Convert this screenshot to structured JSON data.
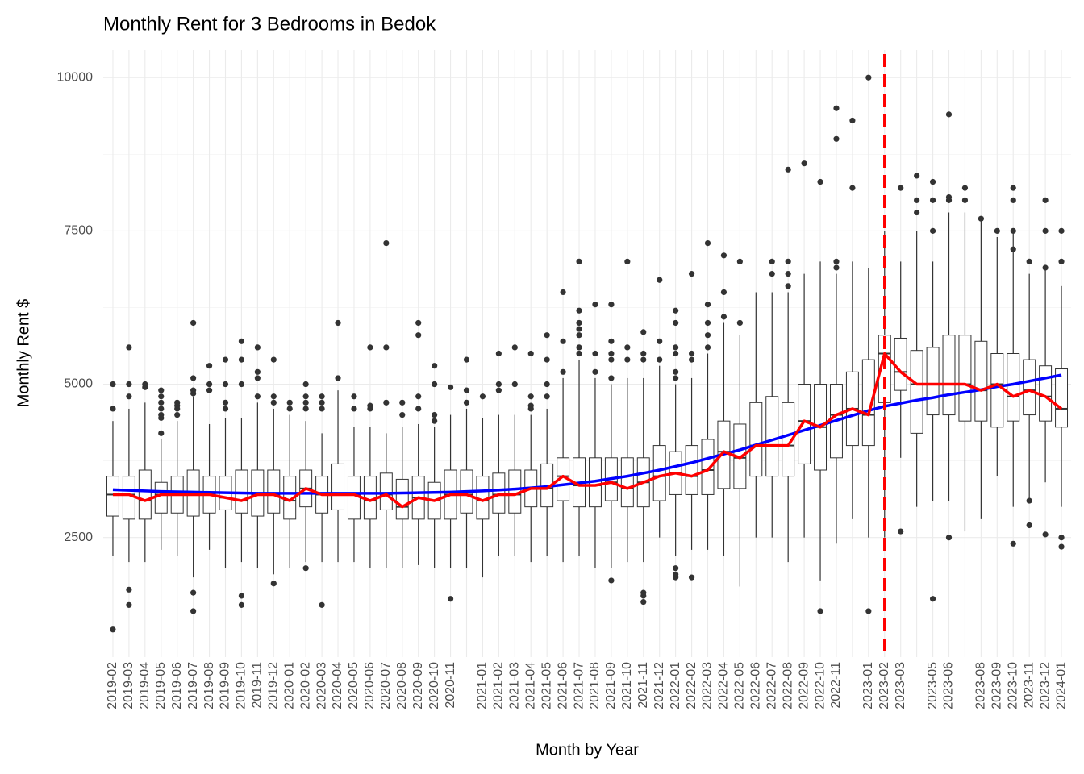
{
  "chart_data": {
    "type": "boxplot",
    "title": "Monthly Rent for 3 Bedrooms in Bedok",
    "x_label": "Month by Year",
    "y_label": "Monthly Rent $",
    "categories": [
      "2019-02",
      "2019-03",
      "2019-04",
      "2019-05",
      "2019-06",
      "2019-07",
      "2019-08",
      "2019-09",
      "2019-10",
      "2019-11",
      "2019-12",
      "2020-01",
      "2020-02",
      "2020-03",
      "2020-04",
      "2020-05",
      "2020-06",
      "2020-07",
      "2020-08",
      "2020-09",
      "2020-10",
      "2020-11",
      null,
      "2021-01",
      "2021-02",
      "2021-03",
      "2021-04",
      "2021-05",
      "2021-06",
      "2021-07",
      "2021-08",
      "2021-09",
      "2021-10",
      "2021-11",
      "2021-12",
      "2022-01",
      "2022-02",
      "2022-03",
      "2022-04",
      "2022-05",
      "2022-06",
      "2022-07",
      "2022-08",
      "2022-09",
      "2022-10",
      "2022-11",
      null,
      "2023-01",
      "2023-02",
      "2023-03",
      null,
      "2023-05",
      "2023-06",
      null,
      "2023-08",
      "2023-09",
      "2023-10",
      "2023-11",
      "2023-12",
      "2024-01"
    ],
    "whisker_low": [
      2200,
      2100,
      2100,
      2300,
      2200,
      1850,
      2300,
      2000,
      2100,
      2000,
      1900,
      2000,
      2100,
      2100,
      2100,
      2100,
      2000,
      2000,
      2000,
      2050,
      2000,
      2000,
      2000,
      1850,
      2200,
      2200,
      2100,
      2200,
      2100,
      2200,
      2000,
      2000,
      2100,
      2100,
      2500,
      2200,
      2300,
      2300,
      2200,
      1700,
      2500,
      2500,
      2100,
      2500,
      1800,
      2400,
      2800,
      2500,
      2500,
      3800,
      3000,
      3100,
      3100,
      2600,
      2800,
      3500,
      3000,
      3100,
      3400,
      3000
    ],
    "q1": [
      2850,
      2800,
      2800,
      2900,
      2900,
      2850,
      2900,
      2950,
      2900,
      2850,
      2900,
      2800,
      3000,
      2900,
      2950,
      2800,
      2800,
      2950,
      2800,
      2800,
      2800,
      2800,
      2900,
      2800,
      2900,
      2900,
      3000,
      3000,
      3100,
      3000,
      3000,
      3100,
      3000,
      3000,
      3100,
      3200,
      3200,
      3200,
      3300,
      3300,
      3500,
      3500,
      3500,
      3700,
      3600,
      3800,
      4000,
      4000,
      4700,
      4900,
      4200,
      4500,
      4500,
      4400,
      4400,
      4300,
      4400,
      4500,
      4400,
      4300
    ],
    "median": [
      3200,
      3200,
      3100,
      3200,
      3200,
      3200,
      3200,
      3150,
      3100,
      3200,
      3200,
      3100,
      3300,
      3200,
      3200,
      3200,
      3100,
      3200,
      3000,
      3150,
      3100,
      3200,
      3200,
      3100,
      3200,
      3200,
      3300,
      3300,
      3500,
      3350,
      3350,
      3400,
      3300,
      3400,
      3500,
      3550,
      3500,
      3600,
      3900,
      3800,
      4000,
      4000,
      4000,
      4400,
      4300,
      4500,
      4600,
      4500,
      5500,
      5200,
      5000,
      5000,
      5000,
      5000,
      4900,
      5000,
      4800,
      4900,
      4800,
      4600
    ],
    "q3": [
      3500,
      3500,
      3600,
      3400,
      3500,
      3600,
      3500,
      3500,
      3600,
      3600,
      3600,
      3500,
      3600,
      3500,
      3700,
      3500,
      3500,
      3550,
      3450,
      3500,
      3400,
      3600,
      3600,
      3500,
      3550,
      3600,
      3600,
      3700,
      3800,
      3800,
      3800,
      3800,
      3800,
      3800,
      4000,
      3900,
      4000,
      4100,
      4400,
      4350,
      4700,
      4800,
      4700,
      5000,
      5000,
      5000,
      5200,
      5400,
      5800,
      5750,
      5550,
      5600,
      5800,
      5800,
      5700,
      5500,
      5500,
      5400,
      5300,
      5250
    ],
    "whisker_high": [
      4400,
      4600,
      4700,
      4100,
      4400,
      4800,
      4350,
      4450,
      4450,
      4700,
      4600,
      4500,
      4400,
      4200,
      4900,
      4300,
      4300,
      4200,
      4300,
      4350,
      4300,
      4500,
      4600,
      4450,
      4500,
      4500,
      4500,
      4600,
      5100,
      5400,
      5100,
      5000,
      5100,
      5100,
      5300,
      5000,
      5100,
      5500,
      6000,
      5800,
      6500,
      6500,
      6500,
      6800,
      7000,
      6800,
      7000,
      6900,
      7500,
      7000,
      7500,
      7000,
      7800,
      7800,
      7700,
      7400,
      7500,
      6800,
      6900,
      6600
    ],
    "outliers": [
      [
        1000,
        4600,
        5000
      ],
      [
        1400,
        1650,
        4800,
        5000,
        5600
      ],
      [
        4950,
        5000
      ],
      [
        4200,
        4450,
        4500,
        4600,
        4700,
        4800,
        4900
      ],
      [
        4500,
        4600,
        4650,
        4700
      ],
      [
        1300,
        1600,
        4850,
        4900,
        5100,
        6000
      ],
      [
        4900,
        5000,
        5300
      ],
      [
        4600,
        4700,
        5000,
        5400
      ],
      [
        1400,
        1550,
        5000,
        5400,
        5700
      ],
      [
        4800,
        5100,
        5200,
        5600
      ],
      [
        1750,
        4700,
        4800,
        5400
      ],
      [
        4600,
        4700
      ],
      [
        2000,
        4600,
        4700,
        4800,
        5000
      ],
      [
        1400,
        4600,
        4700,
        4800
      ],
      [
        5100,
        6000
      ],
      [
        4600,
        4800
      ],
      [
        4600,
        4650,
        5600
      ],
      [
        4700,
        5600,
        7300
      ],
      [
        4500,
        4700
      ],
      [
        4600,
        4800,
        5800,
        6000
      ],
      [
        4400,
        4500,
        5000,
        5300
      ],
      [
        1500,
        4950
      ],
      [
        4700,
        4900,
        5400
      ],
      [
        4800
      ],
      [
        4900,
        5000,
        5500
      ],
      [
        5000,
        5600
      ],
      [
        4600,
        4650,
        4800,
        5500
      ],
      [
        4800,
        5000,
        5400,
        5800
      ],
      [
        5200,
        5700,
        6500
      ],
      [
        5500,
        5600,
        5800,
        5900,
        6000,
        6200,
        7000
      ],
      [
        5200,
        5500,
        6300
      ],
      [
        1800,
        5100,
        5400,
        5500,
        5700,
        6300
      ],
      [
        5400,
        5600,
        7000
      ],
      [
        1450,
        1550,
        1600,
        5400,
        5500,
        5850
      ],
      [
        5400,
        5700,
        6700
      ],
      [
        1850,
        1900,
        2000,
        5100,
        5200,
        5500,
        5600,
        6000,
        6200
      ],
      [
        1850,
        5400,
        5500,
        6800
      ],
      [
        5600,
        5800,
        6000,
        6300,
        7300
      ],
      [
        6100,
        6500,
        7100
      ],
      [
        6000,
        7000
      ],
      [],
      [
        6800,
        7000
      ],
      [
        6600,
        6800,
        7000,
        8500
      ],
      [
        8600
      ],
      [
        1300,
        8300
      ],
      [
        6900,
        7000,
        9000,
        9500
      ],
      [
        8200,
        9300
      ],
      [
        1300,
        10000
      ],
      [],
      [
        2600,
        8200
      ],
      [
        7800,
        8000,
        8400
      ],
      [
        1500,
        7500,
        8000,
        8300
      ],
      [
        2500,
        8000,
        8050,
        9400
      ],
      [
        8000,
        8200
      ],
      [
        7700
      ],
      [
        7500
      ],
      [
        2400,
        7200,
        7500,
        8000,
        8200
      ],
      [
        2700,
        3100,
        7000
      ],
      [
        2550,
        6900,
        7500,
        8000
      ],
      [
        2350,
        2500,
        7000,
        7500
      ]
    ],
    "trend": {
      "color": "blue",
      "values": [
        3280,
        3270,
        3260,
        3250,
        3245,
        3240,
        3235,
        3230,
        3225,
        3220,
        3220,
        3220,
        3220,
        3220,
        3220,
        3220,
        3220,
        3220,
        3225,
        3230,
        3235,
        3240,
        3250,
        3260,
        3275,
        3290,
        3310,
        3330,
        3360,
        3390,
        3420,
        3460,
        3500,
        3550,
        3600,
        3660,
        3720,
        3790,
        3860,
        3930,
        4010,
        4090,
        4170,
        4250,
        4330,
        4410,
        4490,
        4570,
        4640,
        4690,
        4740,
        4780,
        4830,
        4870,
        4910,
        4960,
        5000,
        5050,
        5100,
        5150
      ]
    },
    "median_line_color": "red",
    "vline_category": "2023-02",
    "vline_color": "red",
    "box_color": "#333333",
    "ylim": [
      550,
      10450
    ],
    "yticks": [
      2500,
      5000,
      7500,
      10000
    ],
    "grid": true
  }
}
